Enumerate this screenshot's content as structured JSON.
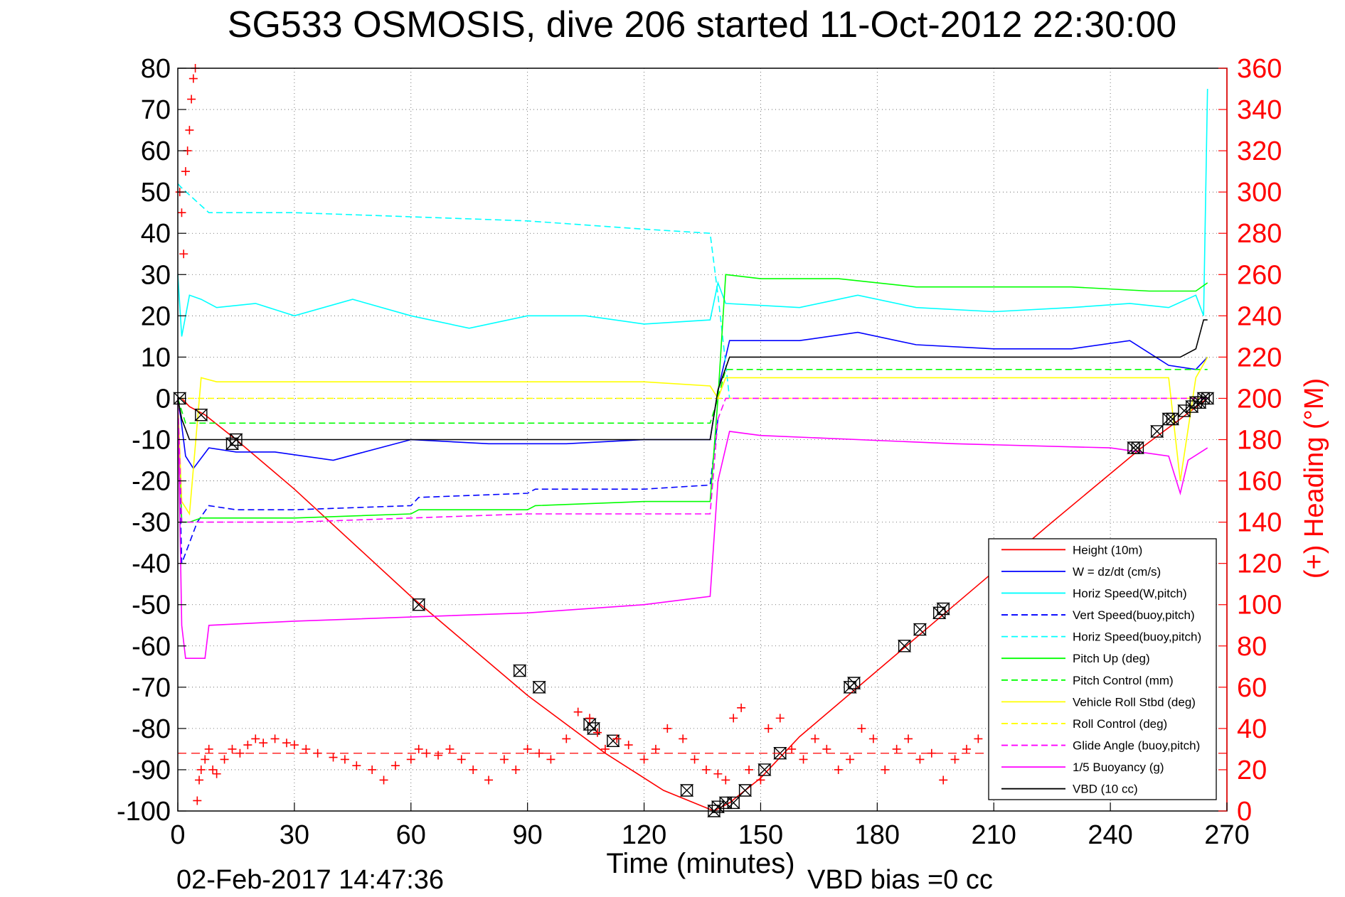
{
  "chart_data": {
    "type": "line",
    "title": "SG533 OSMOSIS, dive 206 started 11-Oct-2012 22:30:00",
    "xlabel": "Time (minutes)",
    "ylabel": "",
    "y2label": "(+) Heading (°M)",
    "xlim": [
      0,
      270
    ],
    "ylim": [
      -100,
      80
    ],
    "y2lim": [
      0,
      360
    ],
    "xticks": [
      "0",
      "30",
      "60",
      "90",
      "120",
      "150",
      "180",
      "210",
      "240",
      "270"
    ],
    "yticks": [
      "80",
      "70",
      "60",
      "50",
      "40",
      "30",
      "20",
      "10",
      "0",
      "-10",
      "-20",
      "-30",
      "-40",
      "-50",
      "-60",
      "-70",
      "-80",
      "-90",
      "-100"
    ],
    "y2ticks": [
      "360",
      "340",
      "320",
      "300",
      "280",
      "260",
      "240",
      "220",
      "200",
      "180",
      "160",
      "140",
      "120",
      "100",
      "80",
      "60",
      "40",
      "20",
      "0"
    ],
    "grid": true,
    "legend_position": "bottom-right",
    "timestamp": "02-Feb-2017 14:47:36",
    "footnote": "VBD bias =0 cc",
    "colors": {
      "red": "#ff0000",
      "blue": "#0000ff",
      "cyan": "#00ffff",
      "green": "#00ff00",
      "yellow": "#ffff00",
      "magenta": "#ff00ff",
      "black": "#000000"
    },
    "series": [
      {
        "name": "Height (10m)",
        "color": "#ff0000",
        "dash": false,
        "x": [
          0,
          1,
          3,
          7,
          15,
          30,
          60,
          90,
          110,
          125,
          138,
          142,
          150,
          160,
          180,
          200,
          225,
          248,
          258,
          265
        ],
        "y": [
          0,
          0,
          -2,
          -4,
          -10,
          -22,
          -48,
          -72,
          -86,
          -95,
          -100,
          -98,
          -92,
          -82,
          -66,
          -50,
          -30,
          -12,
          -5,
          0
        ]
      },
      {
        "name": "W = dz/dt (cm/s)",
        "color": "#0000ff",
        "dash": false,
        "x": [
          0,
          0.8,
          2,
          4,
          8,
          15,
          25,
          40,
          60,
          80,
          100,
          120,
          137,
          139,
          142,
          160,
          175,
          190,
          210,
          230,
          245,
          255,
          262,
          265
        ],
        "y": [
          0,
          -5,
          -14,
          -17,
          -12,
          -13,
          -13,
          -15,
          -10,
          -11,
          -11,
          -10,
          -10,
          2,
          14,
          14,
          16,
          13,
          12,
          12,
          14,
          8,
          7,
          10
        ]
      },
      {
        "name": "Horiz Speed(W,pitch)",
        "color": "#00ffff",
        "dash": false,
        "x": [
          0,
          1,
          3,
          6,
          10,
          20,
          30,
          45,
          60,
          75,
          90,
          105,
          120,
          137,
          139,
          141,
          160,
          175,
          190,
          210,
          230,
          245,
          255,
          262,
          264,
          265
        ],
        "y": [
          30,
          15,
          25,
          24,
          22,
          23,
          20,
          24,
          20,
          17,
          20,
          20,
          18,
          19,
          28,
          23,
          22,
          25,
          22,
          21,
          22,
          23,
          22,
          25,
          20,
          75
        ]
      },
      {
        "name": "Vert Speed(buoy,pitch)",
        "color": "#0000ff",
        "dash": true,
        "x": [
          0,
          1,
          5,
          8,
          15,
          30,
          60,
          62,
          90,
          92,
          110,
          120,
          137,
          139
        ],
        "y": [
          0,
          -40,
          -30,
          -26,
          -27,
          -27,
          -26,
          -24,
          -23,
          -22,
          -22,
          -22,
          -21,
          -5
        ]
      },
      {
        "name": "Horiz Speed(buoy,pitch)",
        "color": "#00ffff",
        "dash": true,
        "x": [
          0,
          1,
          8,
          30,
          60,
          90,
          120,
          137,
          139,
          142
        ],
        "y": [
          52,
          51,
          45,
          45,
          44,
          43,
          41,
          40,
          25,
          0
        ]
      },
      {
        "name": "Pitch Up (deg)",
        "color": "#00ff00",
        "dash": false,
        "x": [
          0,
          1,
          3,
          6,
          10,
          15,
          30,
          60,
          62,
          90,
          92,
          120,
          137,
          139,
          141,
          150,
          170,
          190,
          210,
          230,
          250,
          258,
          262,
          265
        ],
        "y": [
          0,
          -30,
          -30,
          -29,
          -29,
          -29,
          -29,
          -28,
          -27,
          -27,
          -26,
          -25,
          -25,
          0,
          30,
          29,
          29,
          27,
          27,
          27,
          26,
          26,
          26,
          28
        ]
      },
      {
        "name": "Pitch Control (mm)",
        "color": "#00ff00",
        "dash": true,
        "x": [
          0,
          2,
          8,
          60,
          120,
          137,
          139,
          141,
          200,
          250,
          265
        ],
        "y": [
          0,
          -6,
          -6,
          -6,
          -6,
          -6,
          0,
          7,
          7,
          7,
          7
        ]
      },
      {
        "name": "Vehicle Roll Stbd (deg)",
        "color": "#ffff00",
        "dash": false,
        "x": [
          0,
          1,
          3,
          6,
          10,
          30,
          60,
          90,
          120,
          137,
          139,
          141,
          160,
          200,
          240,
          255,
          258,
          262,
          265
        ],
        "y": [
          0,
          -25,
          -28,
          5,
          4,
          4,
          4,
          4,
          4,
          3,
          0,
          5,
          5,
          5,
          5,
          5,
          -20,
          5,
          10
        ]
      },
      {
        "name": "Roll Control (deg)",
        "color": "#ffff00",
        "dash": true,
        "x": [
          0,
          140,
          141,
          265
        ],
        "y": [
          0,
          0,
          0,
          0
        ]
      },
      {
        "name": "Glide Angle (buoy,pitch)",
        "color": "#ff00ff",
        "dash": true,
        "x": [
          0,
          1,
          5,
          15,
          30,
          60,
          90,
          120,
          137,
          139,
          141,
          265
        ],
        "y": [
          0,
          -30,
          -30,
          -30,
          -30,
          -29,
          -28,
          -28,
          -28,
          -5,
          0,
          0
        ]
      },
      {
        "name": "1/5 Buoyancy (g)",
        "color": "#ff00ff",
        "dash": false,
        "x": [
          0,
          1,
          2,
          7,
          8,
          30,
          60,
          90,
          120,
          137,
          139,
          142,
          150,
          200,
          240,
          255,
          258,
          260,
          265
        ],
        "y": [
          0,
          -55,
          -63,
          -63,
          -55,
          -54,
          -53,
          -52,
          -50,
          -48,
          -20,
          -8,
          -9,
          -11,
          -12,
          -14,
          -23,
          -15,
          -12
        ]
      },
      {
        "name": "VBD (10 cc)",
        "color": "#000000",
        "dash": false,
        "x": [
          0,
          1,
          3,
          8,
          60,
          120,
          137,
          139,
          142,
          200,
          258,
          262,
          264,
          265
        ],
        "y": [
          0,
          -5,
          -10,
          -10,
          -10,
          -10,
          -10,
          2,
          10,
          10,
          10,
          12,
          19,
          19
        ]
      }
    ],
    "heading": {
      "name": "(+) Heading",
      "marker": "+",
      "color": "#ff0000",
      "axis": "right",
      "mean": 28,
      "x": [
        0.5,
        1.0,
        1.5,
        2.0,
        2.5,
        3.0,
        3.5,
        4.0,
        4.5,
        5.0,
        5.5,
        6,
        7,
        8,
        9,
        10,
        12,
        14,
        16,
        18,
        20,
        22,
        25,
        28,
        30,
        33,
        36,
        40,
        43,
        46,
        50,
        53,
        56,
        60,
        62,
        64,
        67,
        70,
        73,
        76,
        80,
        84,
        87,
        90,
        93,
        96,
        100,
        103,
        106,
        108,
        110,
        113,
        116,
        120,
        123,
        126,
        130,
        133,
        136,
        139,
        141,
        143,
        145,
        147,
        150,
        152,
        155,
        158,
        161,
        164,
        167,
        170,
        173,
        176,
        179,
        182,
        185,
        188,
        191,
        194,
        197,
        200,
        203,
        206,
        210
      ],
      "y": [
        300,
        290,
        270,
        310,
        320,
        330,
        345,
        355,
        360,
        5,
        15,
        20,
        25,
        30,
        20,
        18,
        25,
        30,
        28,
        32,
        35,
        33,
        35,
        33,
        32,
        30,
        28,
        26,
        25,
        22,
        20,
        15,
        22,
        25,
        30,
        28,
        27,
        30,
        25,
        20,
        15,
        25,
        20,
        30,
        28,
        25,
        35,
        48,
        45,
        38,
        30,
        35,
        32,
        25,
        30,
        40,
        35,
        25,
        20,
        18,
        15,
        45,
        50,
        20,
        15,
        40,
        45,
        30,
        25,
        35,
        30,
        20,
        25,
        40,
        35,
        20,
        30,
        35,
        25,
        28,
        15,
        25,
        30,
        35,
        28
      ]
    },
    "markers": {
      "name": "Height (10m) samples",
      "x": [
        0.5,
        6,
        14,
        15,
        62,
        88,
        93,
        106,
        107,
        112,
        131,
        138,
        139,
        141,
        143,
        146,
        151,
        155,
        173,
        174,
        187,
        191,
        196,
        197,
        246,
        247,
        252,
        255,
        256,
        259,
        261,
        262,
        263,
        264,
        265
      ],
      "y": [
        0,
        -4,
        -11,
        -10,
        -50,
        -66,
        -70,
        -79,
        -80,
        -83,
        -95,
        -100,
        -99,
        -98,
        -98,
        -95,
        -90,
        -86,
        -70,
        -69,
        -60,
        -56,
        -52,
        -51,
        -12,
        -12,
        -8,
        -5,
        -5,
        -3,
        -2,
        -1,
        -1,
        0,
        0
      ]
    }
  }
}
